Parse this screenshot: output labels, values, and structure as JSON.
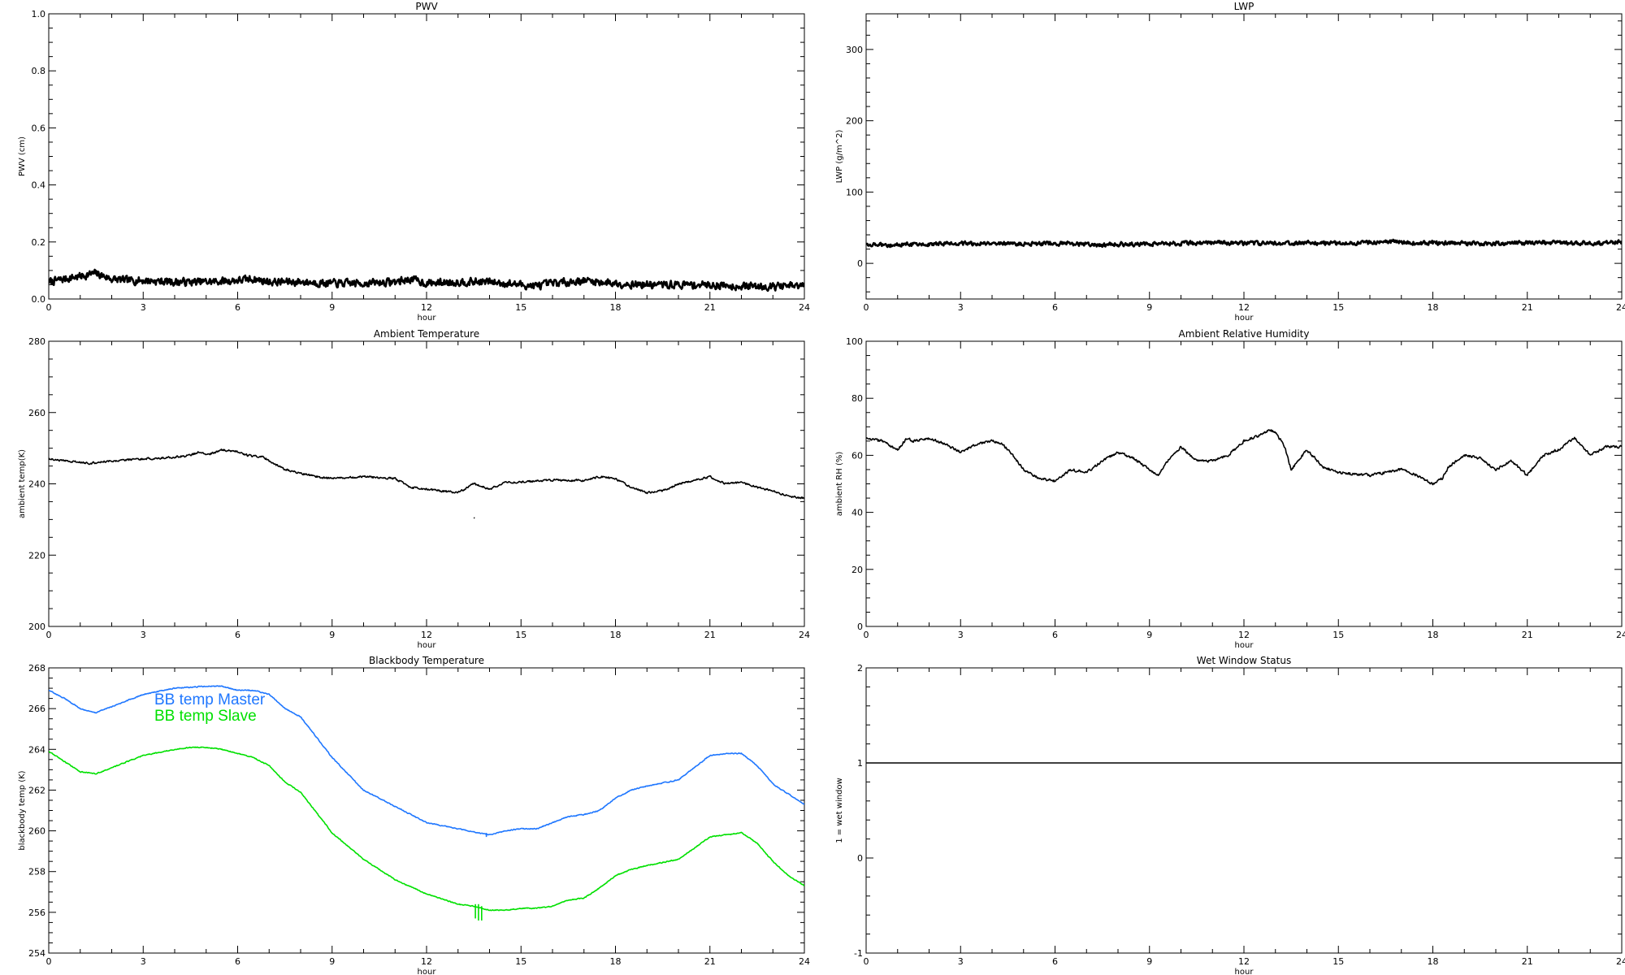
{
  "chart_data": [
    {
      "id": "pwv",
      "type": "line",
      "title": "PWV",
      "xlabel": "hour",
      "ylabel": "PWV (cm)",
      "xlim": [
        0,
        24
      ],
      "ylim": [
        0,
        1.0
      ],
      "xticks": [
        0,
        3,
        6,
        9,
        12,
        15,
        18,
        21,
        24
      ],
      "yticks": [
        "0.0",
        "0.2",
        "0.4",
        "0.6",
        "0.8",
        "1.0"
      ],
      "yminor": 4,
      "noise": 0.012,
      "series": [
        {
          "color": "#000000",
          "x": [
            0,
            0.5,
            1.0,
            1.5,
            2.0,
            2.5,
            3.0,
            4.0,
            5.0,
            6.0,
            6.5,
            7.0,
            8.0,
            9.0,
            10.0,
            11.0,
            11.5,
            12.0,
            13.0,
            14.0,
            15.0,
            15.5,
            16.0,
            17.0,
            18.0,
            19.0,
            20.0,
            21.0,
            22.0,
            23.0,
            24.0
          ],
          "y": [
            0.06,
            0.07,
            0.08,
            0.09,
            0.07,
            0.065,
            0.065,
            0.06,
            0.06,
            0.065,
            0.07,
            0.06,
            0.06,
            0.055,
            0.055,
            0.06,
            0.07,
            0.055,
            0.06,
            0.06,
            0.05,
            0.045,
            0.055,
            0.065,
            0.055,
            0.05,
            0.05,
            0.05,
            0.045,
            0.045,
            0.045
          ]
        }
      ]
    },
    {
      "id": "lwp",
      "type": "line",
      "title": "LWP",
      "xlabel": "hour",
      "ylabel": "LWP (g/m^2)",
      "xlim": [
        0,
        24
      ],
      "ylim": [
        -50,
        350
      ],
      "xticks": [
        0,
        3,
        6,
        9,
        12,
        15,
        18,
        21,
        24
      ],
      "yticks": [
        "0",
        "100",
        "200",
        "300"
      ],
      "yminor": 5,
      "noise": 2.5,
      "series": [
        {
          "color": "#000000",
          "x": [
            0,
            1,
            2,
            3,
            4,
            5,
            6,
            7,
            7.5,
            8,
            9,
            10,
            11,
            12,
            13,
            14,
            15,
            16,
            16.8,
            17.5,
            18,
            19,
            20,
            21,
            22,
            23,
            24
          ],
          "y": [
            27,
            26,
            27,
            28,
            28,
            27,
            28,
            27,
            25,
            27,
            27,
            28,
            29,
            28,
            28,
            29,
            28,
            29,
            31,
            28,
            29,
            28,
            28,
            29,
            29,
            28,
            30
          ]
        }
      ]
    },
    {
      "id": "ambient-temp",
      "type": "line",
      "title": "Ambient Temperature",
      "xlabel": "hour",
      "ylabel": "ambient temp(K)",
      "xlim": [
        0,
        24
      ],
      "ylim": [
        200,
        280
      ],
      "xticks": [
        0,
        3,
        6,
        9,
        12,
        15,
        18,
        21,
        24
      ],
      "yticks": [
        "200",
        "220",
        "240",
        "260",
        "280"
      ],
      "yminor": 4,
      "noise": 0.25,
      "series": [
        {
          "color": "#000000",
          "x": [
            0,
            0.5,
            1.0,
            1.3,
            2.0,
            3.0,
            3.5,
            4.0,
            4.5,
            4.8,
            5.0,
            5.5,
            6.0,
            6.3,
            6.8,
            7.5,
            8.0,
            8.5,
            9.0,
            10.0,
            11.0,
            11.5,
            12.0,
            12.5,
            13.0,
            13.5,
            14.0,
            14.5,
            15.0,
            16.0,
            17.0,
            17.5,
            18.0,
            18.5,
            19.0,
            19.5,
            20.0,
            20.5,
            21.0,
            21.5,
            22.0,
            22.5,
            23.0,
            23.5,
            24.0
          ],
          "y": [
            247,
            246.5,
            246,
            245.8,
            246.5,
            247,
            247.2,
            247.5,
            248,
            249,
            248,
            249.5,
            249,
            248,
            247.5,
            244,
            243,
            242,
            241.5,
            242,
            241.5,
            239,
            238.5,
            238,
            237.5,
            240,
            238.5,
            240.5,
            240.5,
            241,
            241,
            242,
            241.5,
            239,
            237.5,
            238,
            240,
            241,
            242,
            240,
            240.5,
            239,
            238,
            236.5,
            236
          ]
        },
        {
          "color": "#000000",
          "x": [
            13.5,
            13.53
          ],
          "y": [
            230.5,
            230.4
          ]
        }
      ]
    },
    {
      "id": "ambient-rh",
      "type": "line",
      "title": "Ambient Relative Humidity",
      "xlabel": "hour",
      "ylabel": "ambient RH (%)",
      "xlim": [
        0,
        24
      ],
      "ylim": [
        0,
        100
      ],
      "xticks": [
        0,
        3,
        6,
        9,
        12,
        15,
        18,
        21,
        24
      ],
      "yticks": [
        "0",
        "20",
        "40",
        "60",
        "80",
        "100"
      ],
      "yminor": 4,
      "noise": 0.4,
      "series": [
        {
          "color": "#000000",
          "x": [
            0,
            0.5,
            1.0,
            1.3,
            1.5,
            2.0,
            2.5,
            3.0,
            3.5,
            4.0,
            4.3,
            4.5,
            4.8,
            5.0,
            5.5,
            6.0,
            6.5,
            7.0,
            7.5,
            8.0,
            8.5,
            9.0,
            9.3,
            9.5,
            10.0,
            10.5,
            11.0,
            11.5,
            12.0,
            12.5,
            12.8,
            13.0,
            13.3,
            13.5,
            14.0,
            14.5,
            15.0,
            16.0,
            16.5,
            17.0,
            17.5,
            18.0,
            18.3,
            18.5,
            19.0,
            19.5,
            20.0,
            20.5,
            21.0,
            21.5,
            22.0,
            22.5,
            23.0,
            23.5,
            24.0
          ],
          "y": [
            66,
            65,
            62,
            66,
            65,
            66,
            64,
            61,
            64,
            65,
            64,
            62,
            58,
            55,
            52,
            51,
            55,
            54,
            58,
            61,
            59,
            55,
            53,
            57,
            63,
            58,
            58,
            60,
            65,
            67,
            69,
            68,
            63,
            55,
            62,
            56,
            54,
            53,
            54,
            55,
            53,
            50,
            52,
            56,
            60,
            59,
            55,
            58,
            53,
            60,
            62,
            66,
            60,
            63,
            63
          ]
        }
      ]
    },
    {
      "id": "blackbody-temp",
      "type": "line",
      "title": "Blackbody Temperature",
      "xlabel": "hour",
      "ylabel": "blackbody temp (K)",
      "xlim": [
        0,
        24
      ],
      "ylim": [
        254,
        268
      ],
      "xticks": [
        0,
        3,
        6,
        9,
        12,
        15,
        18,
        21,
        24
      ],
      "yticks": [
        "254",
        "256",
        "258",
        "260",
        "262",
        "264",
        "266",
        "268"
      ],
      "yminor": 4,
      "noise": 0.02,
      "legend": "top-left",
      "series": [
        {
          "name": "BB temp Master",
          "color": "#1f77ff",
          "x": [
            0,
            0.5,
            1.0,
            1.5,
            2.0,
            3.0,
            4.0,
            5.0,
            5.5,
            6.0,
            6.5,
            7.0,
            7.5,
            8.0,
            9.0,
            10.0,
            11.0,
            12.0,
            13.0,
            14.0,
            14.5,
            15.0,
            15.5,
            16.0,
            16.5,
            17.0,
            17.5,
            18.0,
            18.5,
            19.0,
            20.0,
            21.0,
            21.5,
            22.0,
            22.5,
            23.0,
            23.5,
            24.0
          ],
          "y": [
            266.9,
            266.5,
            266.0,
            265.8,
            266.1,
            266.7,
            267.0,
            267.1,
            267.1,
            266.9,
            266.9,
            266.7,
            266.0,
            265.6,
            263.6,
            262.0,
            261.2,
            260.4,
            260.1,
            259.8,
            260.0,
            260.1,
            260.1,
            260.4,
            260.7,
            260.8,
            261.0,
            261.6,
            262.0,
            262.2,
            262.5,
            263.7,
            263.8,
            263.8,
            263.2,
            262.3,
            261.8,
            261.3
          ]
        },
        {
          "name": "BB temp Slave",
          "color": "#00e000",
          "x": [
            0,
            0.5,
            1.0,
            1.5,
            2.0,
            3.0,
            4.0,
            4.5,
            5.0,
            5.5,
            6.0,
            6.5,
            7.0,
            7.5,
            8.0,
            9.0,
            10.0,
            11.0,
            12.0,
            13.0,
            13.5,
            14.0,
            14.5,
            15.0,
            15.5,
            16.0,
            16.5,
            17.0,
            17.5,
            18.0,
            18.5,
            19.0,
            20.0,
            21.0,
            21.5,
            22.0,
            22.5,
            23.0,
            23.5,
            24.0
          ],
          "y": [
            263.9,
            263.4,
            262.9,
            262.8,
            263.1,
            263.7,
            264.0,
            264.1,
            264.1,
            264.0,
            263.8,
            263.6,
            263.2,
            262.4,
            261.9,
            259.9,
            258.6,
            257.6,
            256.9,
            256.4,
            256.3,
            256.1,
            256.1,
            256.2,
            256.2,
            256.3,
            256.6,
            256.7,
            257.2,
            257.8,
            258.1,
            258.3,
            258.6,
            259.7,
            259.8,
            259.9,
            259.4,
            258.5,
            257.8,
            257.3
          ]
        },
        {
          "color": "#00e000",
          "x": [
            13.55,
            13.55
          ],
          "y": [
            256.4,
            255.7
          ]
        },
        {
          "color": "#00e000",
          "x": [
            13.65,
            13.65
          ],
          "y": [
            256.4,
            255.6
          ]
        },
        {
          "color": "#00e000",
          "x": [
            13.75,
            13.75
          ],
          "y": [
            256.3,
            255.6
          ]
        },
        {
          "color": "#1f77ff",
          "x": [
            13.9,
            13.9
          ],
          "y": [
            259.9,
            259.7
          ]
        }
      ]
    },
    {
      "id": "wet-window",
      "type": "line",
      "title": "Wet Window Status",
      "xlabel": "hour",
      "ylabel": "1 = wet window",
      "xlim": [
        0,
        24
      ],
      "ylim": [
        -1,
        2
      ],
      "xticks": [
        0,
        3,
        6,
        9,
        12,
        15,
        18,
        21,
        24
      ],
      "yticks": [
        "-1",
        "0",
        "1",
        "2"
      ],
      "yminor": 5,
      "noise": 0,
      "series": [
        {
          "color": "#000000",
          "x": [
            0,
            24
          ],
          "y": [
            1,
            1
          ]
        }
      ]
    }
  ]
}
